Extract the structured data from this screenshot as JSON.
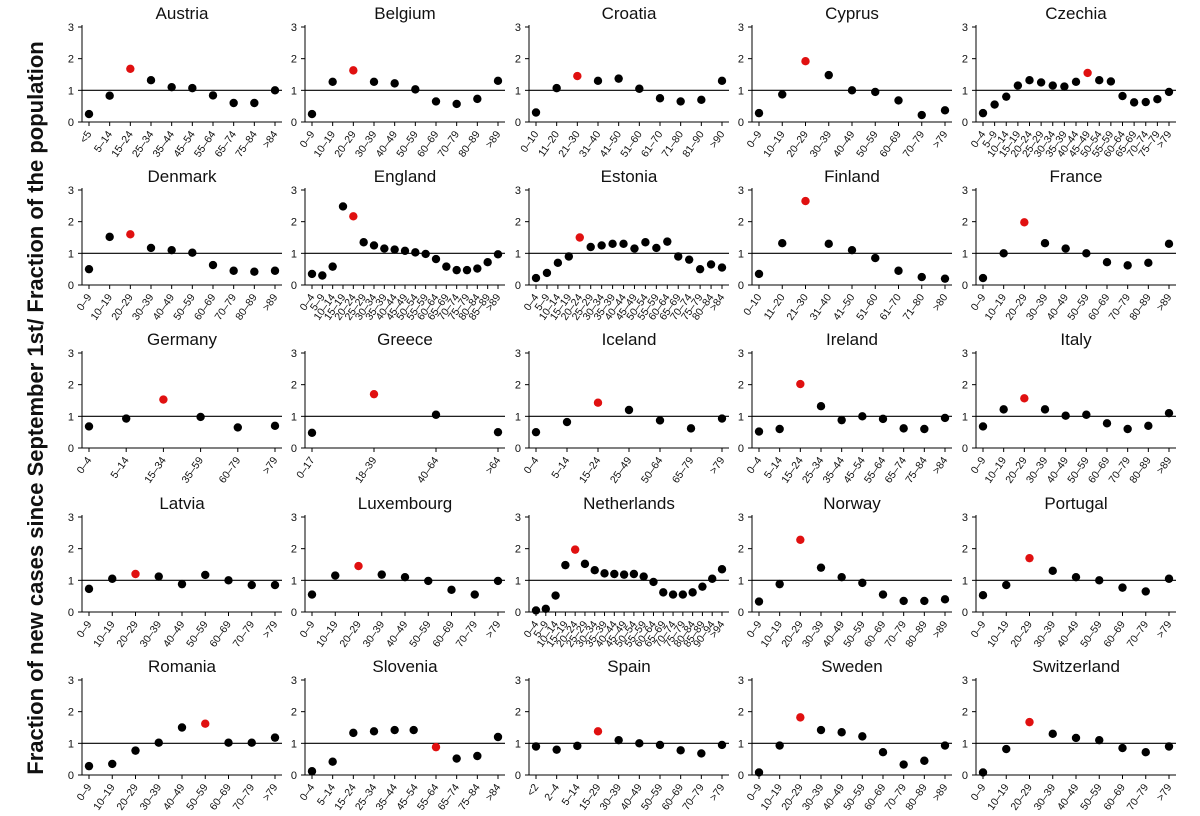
{
  "figure": {
    "ylabel": "Fraction of new cases since September 1st/ Fraction of the population"
  },
  "colors": {
    "highlight": "#e01010",
    "normal": "#000000",
    "axis": "#000000"
  },
  "chart_data": [
    {
      "type": "scatter",
      "title": "Austria",
      "ylim": [
        0,
        3
      ],
      "yticks": [
        0,
        1,
        2,
        3
      ],
      "reference_line": 1,
      "highlight_index": 2,
      "categories": [
        "<5",
        "5–14",
        "15–24",
        "25–34",
        "35–44",
        "45–54",
        "55–64",
        "65–74",
        "75–84",
        ">84"
      ],
      "values": [
        0.25,
        0.83,
        1.68,
        1.32,
        1.1,
        1.07,
        0.84,
        0.6,
        0.6,
        1.0
      ]
    },
    {
      "type": "scatter",
      "title": "Belgium",
      "ylim": [
        0,
        3
      ],
      "yticks": [
        0,
        1,
        2,
        3
      ],
      "reference_line": 1,
      "highlight_index": 2,
      "categories": [
        "0–9",
        "10–19",
        "20–29",
        "30–39",
        "40–49",
        "50–59",
        "60–69",
        "70–79",
        "80–89",
        ">89"
      ],
      "values": [
        0.25,
        1.27,
        1.63,
        1.27,
        1.22,
        1.03,
        0.65,
        0.57,
        0.73,
        1.3
      ]
    },
    {
      "type": "scatter",
      "title": "Croatia",
      "ylim": [
        0,
        3
      ],
      "yticks": [
        0,
        1,
        2,
        3
      ],
      "reference_line": 1,
      "highlight_index": 2,
      "categories": [
        "0–10",
        "11–20",
        "21–30",
        "31–40",
        "41–50",
        "51–60",
        "61–70",
        "71–80",
        "81–90",
        ">90"
      ],
      "values": [
        0.3,
        1.07,
        1.45,
        1.3,
        1.37,
        1.05,
        0.75,
        0.65,
        0.7,
        1.3
      ]
    },
    {
      "type": "scatter",
      "title": "Cyprus",
      "ylim": [
        0,
        3
      ],
      "yticks": [
        0,
        1,
        2,
        3
      ],
      "reference_line": 1,
      "highlight_index": 2,
      "categories": [
        "0–9",
        "10–19",
        "20–29",
        "30–39",
        "40–49",
        "50–59",
        "60–69",
        "70–79",
        ">79"
      ],
      "values": [
        0.28,
        0.87,
        1.92,
        1.48,
        1.0,
        0.95,
        0.68,
        0.22,
        0.37
      ]
    },
    {
      "type": "scatter",
      "title": "Czechia",
      "ylim": [
        0,
        3
      ],
      "yticks": [
        0,
        1,
        2,
        3
      ],
      "reference_line": 1,
      "highlight_index": 9,
      "categories": [
        "0–4",
        "5–9",
        "10–14",
        "15–19",
        "20–24",
        "25–29",
        "30–34",
        "35–39",
        "40–44",
        "45–49",
        "50–54",
        "55–59",
        "60–64",
        "65–69",
        "70–74",
        "75–79",
        ">79"
      ],
      "values": [
        0.28,
        0.55,
        0.8,
        1.15,
        1.32,
        1.25,
        1.15,
        1.12,
        1.27,
        1.55,
        1.32,
        1.28,
        0.82,
        0.62,
        0.63,
        0.72,
        0.95
      ]
    },
    {
      "type": "scatter",
      "title": "Denmark",
      "ylim": [
        0,
        3
      ],
      "yticks": [
        0,
        1,
        2,
        3
      ],
      "reference_line": 1,
      "highlight_index": 2,
      "categories": [
        "0–9",
        "10–19",
        "20–29",
        "30–39",
        "40–49",
        "50–59",
        "60–69",
        "70–79",
        "80–89",
        ">89"
      ],
      "values": [
        0.5,
        1.52,
        1.6,
        1.17,
        1.1,
        1.02,
        0.63,
        0.45,
        0.42,
        0.45
      ]
    },
    {
      "type": "scatter",
      "title": "England",
      "ylim": [
        0,
        3
      ],
      "yticks": [
        0,
        1,
        2,
        3
      ],
      "reference_line": 1,
      "highlight_index": 4,
      "categories": [
        "0–4",
        "5–9",
        "10–14",
        "15–19",
        "20–24",
        "25–29",
        "30–34",
        "35–39",
        "40–44",
        "45–49",
        "50–54",
        "55–59",
        "60–64",
        "65–69",
        "70–74",
        "75–79",
        "80–84",
        "85–89",
        ">89"
      ],
      "values": [
        0.35,
        0.3,
        0.58,
        2.48,
        2.17,
        1.35,
        1.25,
        1.15,
        1.12,
        1.08,
        1.03,
        0.98,
        0.82,
        0.58,
        0.47,
        0.47,
        0.52,
        0.72,
        0.97
      ]
    },
    {
      "type": "scatter",
      "title": "Estonia",
      "ylim": [
        0,
        3
      ],
      "yticks": [
        0,
        1,
        2,
        3
      ],
      "reference_line": 1,
      "highlight_index": 4,
      "categories": [
        "0–4",
        "5–9",
        "10–14",
        "15–19",
        "20–24",
        "25–29",
        "30–34",
        "35–39",
        "40–44",
        "45–49",
        "50–54",
        "55–59",
        "60–64",
        "65–69",
        "70–74",
        "75–79",
        "80–84",
        ">84"
      ],
      "values": [
        0.22,
        0.38,
        0.7,
        0.9,
        1.5,
        1.2,
        1.25,
        1.3,
        1.3,
        1.15,
        1.35,
        1.17,
        1.37,
        0.9,
        0.8,
        0.5,
        0.65,
        0.55
      ]
    },
    {
      "type": "scatter",
      "title": "Finland",
      "ylim": [
        0,
        3
      ],
      "yticks": [
        0,
        1,
        2,
        3
      ],
      "reference_line": 1,
      "highlight_index": 2,
      "categories": [
        "0–10",
        "11–20",
        "21–30",
        "31–40",
        "41–50",
        "51–60",
        "61–70",
        "71–80",
        ">80"
      ],
      "values": [
        0.35,
        1.32,
        2.65,
        1.3,
        1.1,
        0.85,
        0.45,
        0.25,
        0.2
      ]
    },
    {
      "type": "scatter",
      "title": "France",
      "ylim": [
        0,
        3
      ],
      "yticks": [
        0,
        1,
        2,
        3
      ],
      "reference_line": 1,
      "highlight_index": 2,
      "categories": [
        "0–9",
        "10–19",
        "20–29",
        "30–39",
        "40–49",
        "50–59",
        "60–69",
        "70–79",
        "80–89",
        ">89"
      ],
      "values": [
        0.22,
        1.0,
        1.98,
        1.32,
        1.15,
        1.0,
        0.72,
        0.62,
        0.7,
        1.3
      ]
    },
    {
      "type": "scatter",
      "title": "Germany",
      "ylim": [
        0,
        3
      ],
      "yticks": [
        0,
        1,
        2,
        3
      ],
      "reference_line": 1,
      "highlight_index": 2,
      "categories": [
        "0–4",
        "5–14",
        "15–34",
        "35–59",
        "60–79",
        ">79"
      ],
      "x_positions": [
        0,
        1.3,
        2.6,
        3.9,
        5.2,
        6.5
      ],
      "values": [
        0.68,
        0.93,
        1.53,
        0.98,
        0.65,
        0.7
      ]
    },
    {
      "type": "scatter",
      "title": "Greece",
      "ylim": [
        0,
        3
      ],
      "yticks": [
        0,
        1,
        2,
        3
      ],
      "reference_line": 1,
      "highlight_index": 1,
      "categories": [
        "0–17",
        "18–39",
        "40–64",
        ">64"
      ],
      "values": [
        0.48,
        1.7,
        1.05,
        0.5
      ]
    },
    {
      "type": "scatter",
      "title": "Iceland",
      "ylim": [
        0,
        3
      ],
      "yticks": [
        0,
        1,
        2,
        3
      ],
      "reference_line": 1,
      "highlight_index": 2,
      "categories": [
        "0–4",
        "5–14",
        "15–24",
        "25–49",
        "50–64",
        "65–79",
        ">79"
      ],
      "values": [
        0.5,
        0.82,
        1.43,
        1.2,
        0.87,
        0.62,
        0.93
      ]
    },
    {
      "type": "scatter",
      "title": "Ireland",
      "ylim": [
        0,
        3
      ],
      "yticks": [
        0,
        1,
        2,
        3
      ],
      "reference_line": 1,
      "highlight_index": 2,
      "categories": [
        "0–4",
        "5–14",
        "15–24",
        "25–34",
        "35–44",
        "45–54",
        "55–64",
        "65–74",
        "75–84",
        ">84"
      ],
      "values": [
        0.52,
        0.6,
        2.02,
        1.32,
        0.88,
        1.0,
        0.92,
        0.62,
        0.6,
        0.95
      ]
    },
    {
      "type": "scatter",
      "title": "Italy",
      "ylim": [
        0,
        3
      ],
      "yticks": [
        0,
        1,
        2,
        3
      ],
      "reference_line": 1,
      "highlight_index": 2,
      "categories": [
        "0–9",
        "10–19",
        "20–29",
        "30–39",
        "40–49",
        "50–59",
        "60–69",
        "70–79",
        "80–89",
        ">89"
      ],
      "values": [
        0.68,
        1.22,
        1.57,
        1.22,
        1.02,
        1.05,
        0.78,
        0.6,
        0.7,
        1.1
      ]
    },
    {
      "type": "scatter",
      "title": "Latvia",
      "ylim": [
        0,
        3
      ],
      "yticks": [
        0,
        1,
        2,
        3
      ],
      "reference_line": 1,
      "highlight_index": 2,
      "categories": [
        "0–9",
        "10–19",
        "20–29",
        "30–39",
        "40–49",
        "50–59",
        "60–69",
        "70–79",
        ">79"
      ],
      "values": [
        0.73,
        1.05,
        1.2,
        1.12,
        0.88,
        1.17,
        1.0,
        0.85,
        0.85
      ]
    },
    {
      "type": "scatter",
      "title": "Luxembourg",
      "ylim": [
        0,
        3
      ],
      "yticks": [
        0,
        1,
        2,
        3
      ],
      "reference_line": 1,
      "highlight_index": 2,
      "categories": [
        "0–9",
        "10–19",
        "20–29",
        "30–39",
        "40–49",
        "50–59",
        "60–69",
        "70–79",
        ">79"
      ],
      "values": [
        0.55,
        1.15,
        1.45,
        1.18,
        1.1,
        0.98,
        0.7,
        0.55,
        0.98
      ]
    },
    {
      "type": "scatter",
      "title": "Netherlands",
      "ylim": [
        0,
        3
      ],
      "yticks": [
        0,
        1,
        2,
        3
      ],
      "reference_line": 1,
      "highlight_index": 4,
      "categories": [
        "0–4",
        "5–9",
        "10–14",
        "15–19",
        "20–24",
        "25–29",
        "30–34",
        "35–39",
        "40–44",
        "45–49",
        "50–54",
        "55–59",
        "60–64",
        "65–69",
        "70–74",
        "75–79",
        "80–84",
        "85–89",
        "90–94",
        ">94"
      ],
      "values": [
        0.05,
        0.1,
        0.52,
        1.48,
        1.97,
        1.52,
        1.32,
        1.22,
        1.2,
        1.18,
        1.2,
        1.12,
        0.95,
        0.62,
        0.55,
        0.55,
        0.62,
        0.8,
        1.05,
        1.35
      ]
    },
    {
      "type": "scatter",
      "title": "Norway",
      "ylim": [
        0,
        3
      ],
      "yticks": [
        0,
        1,
        2,
        3
      ],
      "reference_line": 1,
      "highlight_index": 2,
      "categories": [
        "0–9",
        "10–19",
        "20–29",
        "30–39",
        "40–49",
        "50–59",
        "60–69",
        "70–79",
        "80–89",
        ">89"
      ],
      "values": [
        0.33,
        0.88,
        2.28,
        1.4,
        1.1,
        0.92,
        0.55,
        0.35,
        0.35,
        0.4
      ]
    },
    {
      "type": "scatter",
      "title": "Portugal",
      "ylim": [
        0,
        3
      ],
      "yticks": [
        0,
        1,
        2,
        3
      ],
      "reference_line": 1,
      "highlight_index": 2,
      "categories": [
        "0–9",
        "10–19",
        "20–29",
        "30–39",
        "40–49",
        "50–59",
        "60–69",
        "70–79",
        ">79"
      ],
      "values": [
        0.53,
        0.85,
        1.7,
        1.3,
        1.1,
        1.0,
        0.77,
        0.65,
        1.05
      ]
    },
    {
      "type": "scatter",
      "title": "Romania",
      "ylim": [
        0,
        3
      ],
      "yticks": [
        0,
        1,
        2,
        3
      ],
      "reference_line": 1,
      "highlight_index": 5,
      "categories": [
        "0–9",
        "10–19",
        "20–29",
        "30–39",
        "40–49",
        "50–59",
        "60–69",
        "70–79",
        ">79"
      ],
      "values": [
        0.28,
        0.35,
        0.77,
        1.02,
        1.5,
        1.62,
        1.02,
        1.02,
        1.18
      ]
    },
    {
      "type": "scatter",
      "title": "Slovenia",
      "ylim": [
        0,
        3
      ],
      "yticks": [
        0,
        1,
        2,
        3
      ],
      "reference_line": 1,
      "highlight_index": 6,
      "categories": [
        "0–4",
        "5–14",
        "15–24",
        "25–34",
        "35–44",
        "45–54",
        "55–64",
        "65–74",
        "75–84",
        ">84"
      ],
      "x_positions": [
        0,
        1,
        2,
        3,
        4,
        5,
        6,
        7,
        8,
        9
      ],
      "values": [
        0.12,
        0.42,
        1.33,
        1.38,
        1.42,
        1.42,
        0.88,
        0.52,
        0.6,
        1.2
      ],
      "point_offsets": [
        0,
        0,
        0,
        0,
        0,
        -0.08,
        0,
        0,
        0,
        0
      ]
    },
    {
      "type": "scatter",
      "title": "Spain",
      "ylim": [
        0,
        3
      ],
      "yticks": [
        0,
        1,
        2,
        3
      ],
      "reference_line": 1,
      "highlight_index": 3,
      "categories": [
        "<2",
        "2–4",
        "5–14",
        "15–29",
        "30–39",
        "40–49",
        "50–59",
        "60–69",
        "70–79",
        ">79"
      ],
      "values": [
        0.9,
        0.8,
        0.92,
        1.38,
        1.1,
        1.0,
        0.95,
        0.78,
        0.68,
        0.95
      ]
    },
    {
      "type": "scatter",
      "title": "Sweden",
      "ylim": [
        0,
        3
      ],
      "yticks": [
        0,
        1,
        2,
        3
      ],
      "reference_line": 1,
      "highlight_index": 2,
      "categories": [
        "0–9",
        "10–19",
        "20–29",
        "30–39",
        "40–49",
        "50–59",
        "60–69",
        "70–79",
        "80–89",
        ">89"
      ],
      "values": [
        0.08,
        0.93,
        1.82,
        1.42,
        1.35,
        1.22,
        0.72,
        0.33,
        0.45,
        0.93
      ]
    },
    {
      "type": "scatter",
      "title": "Switzerland",
      "ylim": [
        0,
        3
      ],
      "yticks": [
        0,
        1,
        2,
        3
      ],
      "reference_line": 1,
      "highlight_index": 2,
      "categories": [
        "0–9",
        "10–19",
        "20–29",
        "30–39",
        "40–49",
        "50–59",
        "60–69",
        "70–79",
        ">79"
      ],
      "values": [
        0.08,
        0.82,
        1.67,
        1.3,
        1.17,
        1.1,
        0.85,
        0.72,
        0.9
      ]
    }
  ]
}
